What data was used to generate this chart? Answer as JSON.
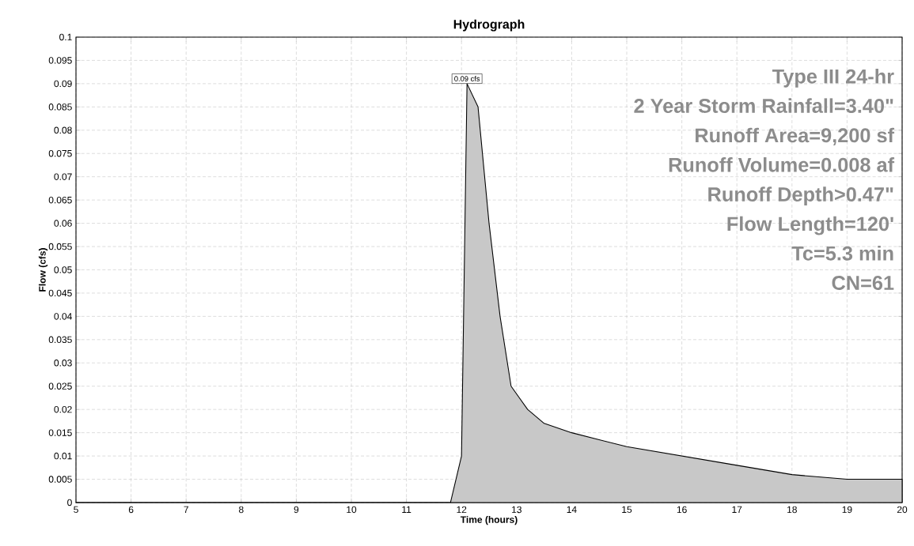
{
  "chart_data": {
    "type": "area",
    "title": "Hydrograph",
    "xlabel": "Time  (hours)",
    "ylabel": "Flow  (cfs)",
    "x": [
      5,
      11.8,
      12.0,
      12.1,
      12.3,
      12.5,
      12.7,
      12.9,
      13.2,
      13.5,
      14,
      15,
      16,
      17,
      18,
      19,
      20
    ],
    "series": [
      {
        "color": "#c8c8c8",
        "values": [
          0,
          0,
          0.01,
          0.09,
          0.085,
          0.06,
          0.04,
          0.025,
          0.02,
          0.017,
          0.015,
          0.012,
          0.01,
          0.008,
          0.006,
          0.005,
          0.005
        ]
      }
    ],
    "xlim": [
      5,
      20
    ],
    "xticks": [
      5,
      6,
      7,
      8,
      9,
      10,
      11,
      12,
      13,
      14,
      15,
      16,
      17,
      18,
      19,
      20
    ],
    "ylim": [
      0,
      0.1
    ],
    "yticks": [
      0,
      0.005,
      0.01,
      0.015,
      0.02,
      0.025,
      0.03,
      0.035,
      0.04,
      0.045,
      0.05,
      0.055,
      0.06,
      0.065,
      0.07,
      0.075,
      0.08,
      0.085,
      0.09,
      0.095,
      0.1
    ],
    "grid": true,
    "line_style": "solid",
    "annotations": [
      {
        "text": "0.09 cfs",
        "x": 12.1,
        "y": 0.09
      },
      "Type III 24-hr",
      "2 Year Storm Rainfall=3.40\"",
      "Runoff Area=9,200 sf",
      "Runoff Volume=0.008 af",
      "Runoff Depth>0.47\"",
      "Flow Length=120'",
      "Tc=5.3 min",
      "CN=61"
    ]
  }
}
